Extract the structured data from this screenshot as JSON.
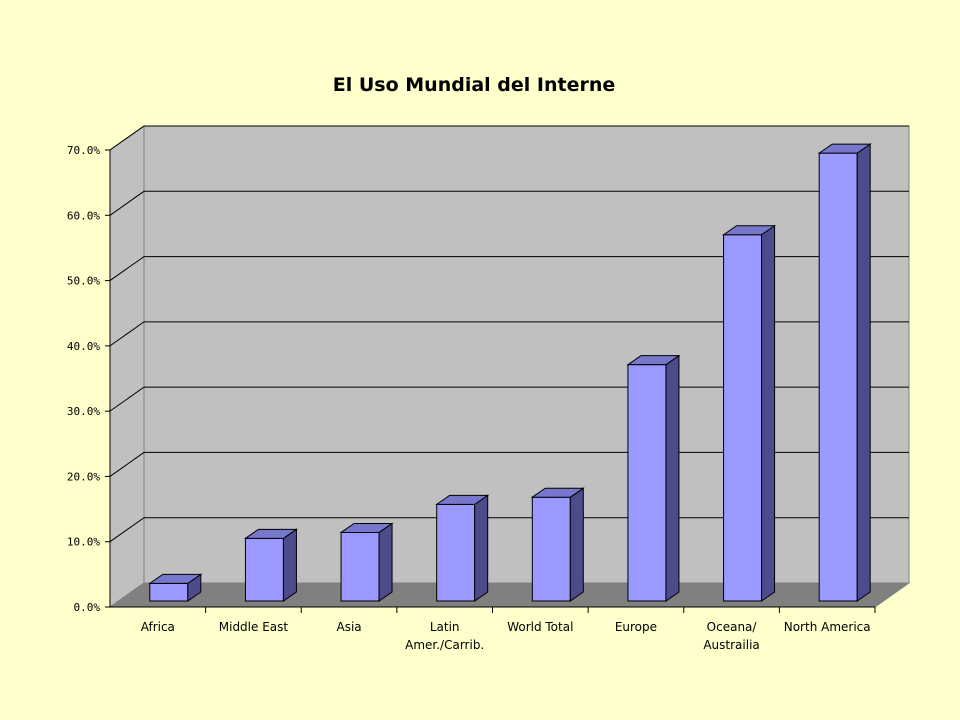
{
  "chart_data": {
    "type": "bar",
    "title": "El Uso Mundial del Interne",
    "xlabel": "",
    "ylabel": "",
    "categories": [
      [
        "Africa"
      ],
      [
        "Middle East"
      ],
      [
        "Asia"
      ],
      [
        "Latin",
        "Amer./Carrib."
      ],
      [
        "World Total"
      ],
      [
        "Europe"
      ],
      [
        "Oceana/",
        "Austrailia"
      ],
      [
        "North America"
      ]
    ],
    "values": [
      2.7,
      9.6,
      10.5,
      14.8,
      15.9,
      36.2,
      56.1,
      68.6
    ],
    "ylim": [
      0,
      70
    ],
    "yticks": [
      "0.0%",
      "10.0%",
      "20.0%",
      "30.0%",
      "40.0%",
      "50.0%",
      "60.0%",
      "70.0%"
    ],
    "grid": true,
    "three_d": true,
    "colors": {
      "bar_front": "#9999ff",
      "bar_top": "#7777cc",
      "bar_side": "#4c4c8c",
      "wall": "#c0c0c0",
      "floor": "#808080",
      "background": "#ffffcc"
    }
  }
}
